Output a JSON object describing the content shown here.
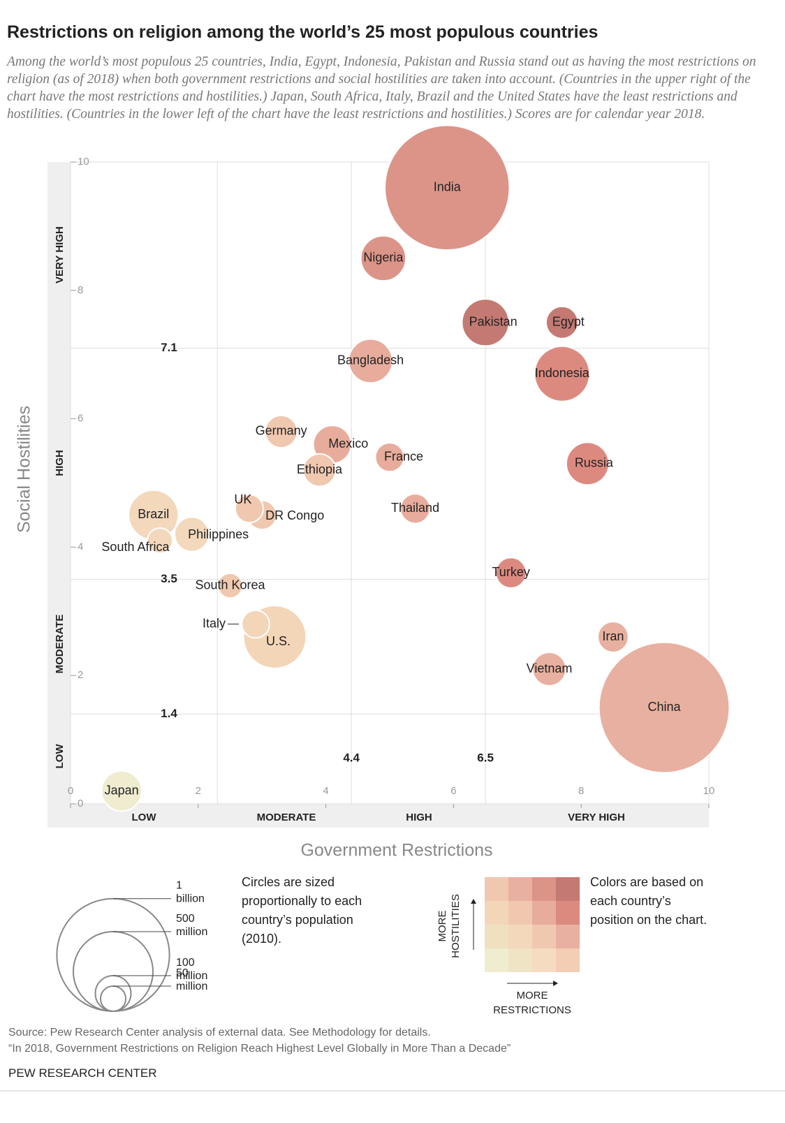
{
  "chart_data": {
    "type": "bubble",
    "title": "Restrictions on religion among the world’s 25 most populous countries",
    "subtitle": "Among the world’s most populous 25 countries, India, Egypt, Indonesia, Pakistan and Russia stand out as having the most restrictions on religion (as of 2018) when both government restrictions and social hostilities are taken into account. (Countries in the upper right of the chart have the most restrictions and hostilities.) Japan, South Africa, Italy, Brazil and the United States have the least restrictions and hostilities. (Countries in the lower left of the chart have the least restrictions and hostilities.) Scores are for calendar year 2018.",
    "x_label": "Government Restrictions",
    "y_label": "Social Hostilities",
    "xlim": [
      0,
      10
    ],
    "ylim": [
      0,
      10
    ],
    "xticks": [
      0,
      2,
      4,
      6,
      8,
      10
    ],
    "yticks": [
      0,
      2,
      4,
      6,
      8,
      10
    ],
    "x_dividers": [
      2.3,
      {
        "value": 4.4,
        "label": "4.4"
      },
      {
        "value": 6.5,
        "label": "6.5"
      }
    ],
    "y_dividers": [
      {
        "value": 1.4,
        "label": "1.4"
      },
      {
        "value": 3.5,
        "label": "3.5"
      },
      {
        "value": 7.1,
        "label": "7.1"
      }
    ],
    "x_levels": [
      "LOW",
      "MODERATE",
      "HIGH",
      "VERY HIGH"
    ],
    "y_levels": [
      "LOW",
      "MODERATE",
      "HIGH",
      "VERY HIGH"
    ],
    "points": [
      {
        "name": "India",
        "x": 5.9,
        "y": 9.6,
        "size": 1225,
        "color": "#dc9488"
      },
      {
        "name": "China",
        "x": 9.3,
        "y": 1.5,
        "size": 1341,
        "color": "#e8b0a0"
      },
      {
        "name": "U.S.",
        "x": 3.2,
        "y": 2.6,
        "size": 310,
        "color": "#f3d5b8"
      },
      {
        "name": "Indonesia",
        "x": 7.7,
        "y": 6.7,
        "size": 240,
        "color": "#dc8a80"
      },
      {
        "name": "Brazil",
        "x": 1.3,
        "y": 4.5,
        "size": 195,
        "color": "#f3d8bc"
      },
      {
        "name": "Pakistan",
        "x": 6.5,
        "y": 7.5,
        "size": 174,
        "color": "#c47a72"
      },
      {
        "name": "Nigeria",
        "x": 4.9,
        "y": 8.5,
        "size": 160,
        "color": "#dc9488"
      },
      {
        "name": "Bangladesh",
        "x": 4.7,
        "y": 6.9,
        "size": 151,
        "color": "#e8ac9c"
      },
      {
        "name": "Russia",
        "x": 8.1,
        "y": 5.3,
        "size": 143,
        "color": "#dc8a80"
      },
      {
        "name": "Japan",
        "x": 0.8,
        "y": 0.2,
        "size": 127,
        "color": "#efecd0"
      },
      {
        "name": "Mexico",
        "x": 4.1,
        "y": 5.6,
        "size": 113,
        "color": "#e8ac9c"
      },
      {
        "name": "Philippines",
        "x": 1.9,
        "y": 4.2,
        "size": 93,
        "color": "#f3d8bc"
      },
      {
        "name": "Vietnam",
        "x": 7.5,
        "y": 2.1,
        "size": 88,
        "color": "#e8b0a0"
      },
      {
        "name": "Ethiopia",
        "x": 3.9,
        "y": 5.2,
        "size": 83,
        "color": "#f0c8b0"
      },
      {
        "name": "Germany",
        "x": 3.3,
        "y": 5.8,
        "size": 82,
        "color": "#f0c8b0"
      },
      {
        "name": "Egypt",
        "x": 7.7,
        "y": 7.5,
        "size": 81,
        "color": "#c47a72"
      },
      {
        "name": "Iran",
        "x": 8.5,
        "y": 2.6,
        "size": 74,
        "color": "#e8b0a0"
      },
      {
        "name": "Turkey",
        "x": 6.9,
        "y": 3.6,
        "size": 73,
        "color": "#dc8a80"
      },
      {
        "name": "Thailand",
        "x": 5.4,
        "y": 4.6,
        "size": 69,
        "color": "#e8ac9c"
      },
      {
        "name": "DR Congo",
        "x": 3.0,
        "y": 4.5,
        "size": 66,
        "color": "#f0c8b0"
      },
      {
        "name": "France",
        "x": 5.0,
        "y": 5.4,
        "size": 65,
        "color": "#e8ac9c"
      },
      {
        "name": "UK",
        "x": 2.8,
        "y": 4.6,
        "size": 62,
        "color": "#f0c8b0"
      },
      {
        "name": "Italy",
        "x": 2.9,
        "y": 2.8,
        "size": 60,
        "color": "#f3d5b8"
      },
      {
        "name": "South Africa",
        "x": 1.4,
        "y": 4.1,
        "size": 50,
        "color": "#f3d8bc"
      },
      {
        "name": "South Korea",
        "x": 2.5,
        "y": 3.4,
        "size": 48,
        "color": "#f0c8b0"
      }
    ],
    "size_legend": [
      {
        "value": 1000,
        "label": "1 billion"
      },
      {
        "value": 500,
        "label": "500 million"
      },
      {
        "value": 100,
        "label": "100 million"
      },
      {
        "value": 50,
        "label": "50 million"
      }
    ],
    "size_note": "Circles are sized proportionally to each country’s population (2010).",
    "color_note": "Colors are based on each country’s position on the chart.",
    "color_legend_y_label": "MORE HOSTILITIES",
    "color_legend_x_label": "MORE RESTRICTIONS",
    "color_legend": [
      [
        "#f0c8b0",
        "#e8b0a0",
        "#dc9488",
        "#c47a72"
      ],
      [
        "#f3d5b8",
        "#f0c8b0",
        "#e8ac9c",
        "#dc8a80"
      ],
      [
        "#efe0c0",
        "#f3d8bc",
        "#f0c8b0",
        "#e8b0a0"
      ],
      [
        "#efecd0",
        "#efe4c4",
        "#f5dcc0",
        "#f3cdb4"
      ]
    ],
    "source": "Source: Pew Research Center analysis of external data. See Methodology for details.",
    "report": "“In 2018, Government Restrictions on Religion Reach Highest Level Globally in More Than a Decade”",
    "credit": "PEW RESEARCH CENTER"
  }
}
